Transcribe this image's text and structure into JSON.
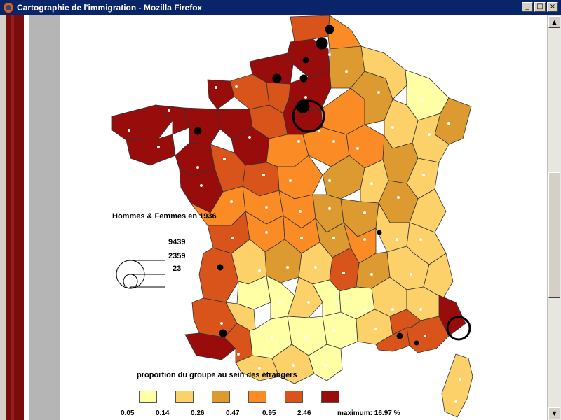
{
  "window": {
    "title": "Cartographie de l'immigration - Mozilla Firefox",
    "controls": {
      "minimize": "_",
      "maximize": "□",
      "close": "×"
    }
  },
  "legend": {
    "title": "Hommes  &  Femmes  en 1936",
    "size_values": [
      "9439",
      "2359",
      "23"
    ],
    "proportion_title": "proportion du groupe au sein des étrangers",
    "classes": [
      {
        "label": "0.05",
        "color": "#ffffa6"
      },
      {
        "label": "0.14",
        "color": "#fdd16a"
      },
      {
        "label": "0.26",
        "color": "#dd9a30"
      },
      {
        "label": "0.47",
        "color": "#fb8c25"
      },
      {
        "label": "0.95",
        "color": "#d9541a"
      },
      {
        "label": "2.46",
        "color": "#990c0c"
      }
    ],
    "maximum": "maximum: 16.97 %"
  },
  "colors": {
    "title_bar": "#0a246a",
    "region_border": "#333333"
  }
}
